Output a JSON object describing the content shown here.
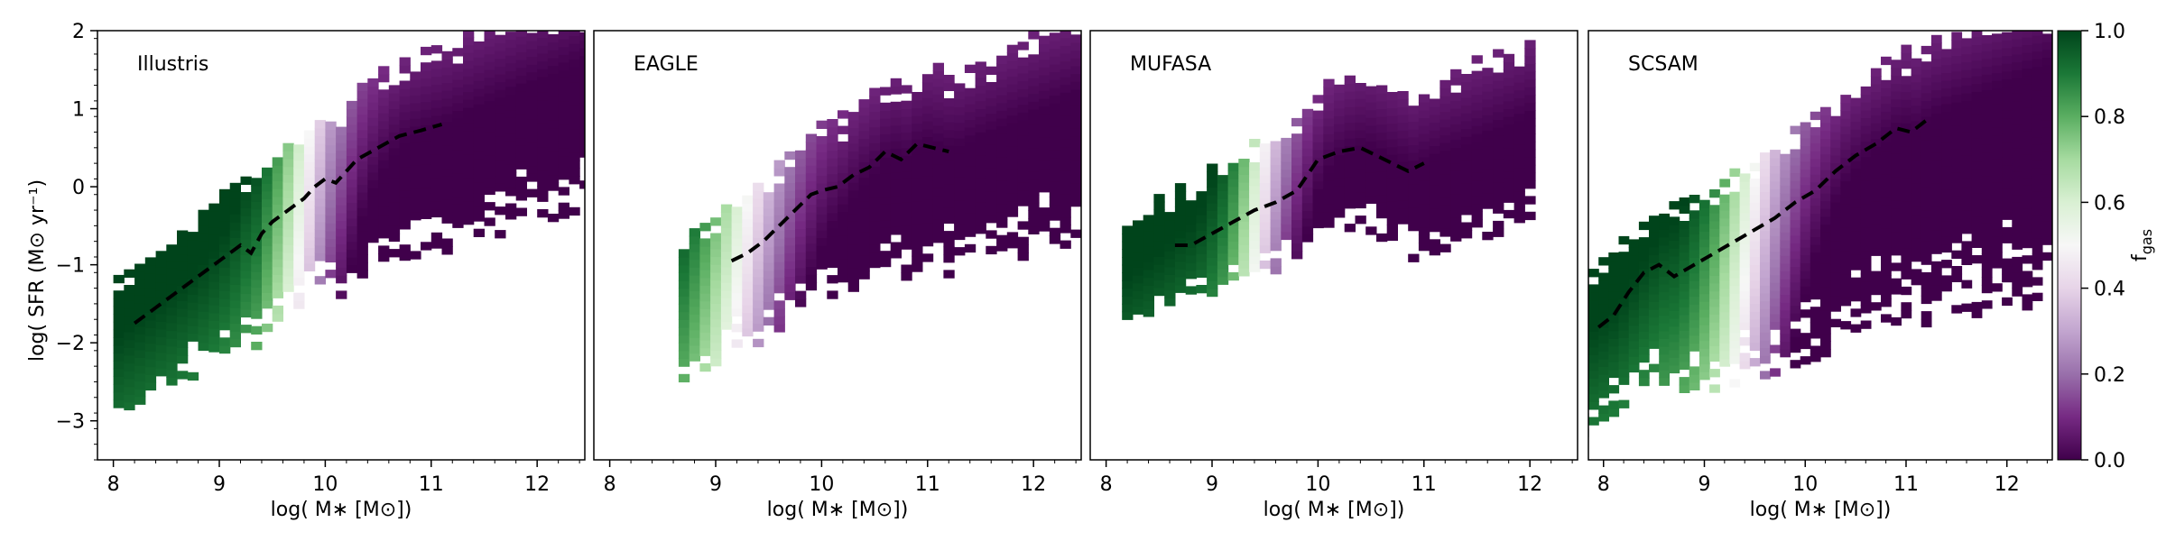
{
  "colors": {
    "colormap": "PRGn",
    "colormap_stops": [
      "#40004b",
      "#762a83",
      "#9970ab",
      "#c2a5cf",
      "#e7d4e8",
      "#f7f7f7",
      "#d9f0d3",
      "#a6dba0",
      "#5aae61",
      "#1b7837",
      "#00441b"
    ],
    "median_line": "#000000"
  },
  "chart_data": [
    {
      "type": "heatmap",
      "title": "Illustris",
      "xlabel": "log( M∗ [M⊙])",
      "ylabel": "log( SFR (M⊙ yr⁻¹)",
      "xlim": [
        7.85,
        12.45
      ],
      "ylim": [
        -3.5,
        2.0
      ],
      "xticks": [
        8,
        9,
        10,
        11,
        12
      ],
      "yticks": [
        -3,
        -2,
        -1,
        0,
        1,
        2
      ],
      "median_x": [
        8.2,
        8.4,
        8.6,
        8.8,
        9.0,
        9.2,
        9.3,
        9.4,
        9.5,
        9.6,
        9.7,
        9.8,
        9.9,
        10.0,
        10.1,
        10.2,
        10.3,
        10.5,
        10.7,
        10.9,
        11.1
      ],
      "median_y": [
        -1.75,
        -1.55,
        -1.35,
        -1.15,
        -0.95,
        -0.75,
        -0.85,
        -0.6,
        -0.45,
        -0.35,
        -0.25,
        -0.15,
        0.0,
        0.1,
        0.05,
        0.2,
        0.35,
        0.5,
        0.65,
        0.72,
        0.8
      ],
      "gas_transition_mass": 9.75,
      "gas_transition_width": 0.45
    },
    {
      "type": "heatmap",
      "title": "EAGLE",
      "xlabel": "log( M∗ [M⊙])",
      "ylabel": "",
      "xlim": [
        7.85,
        12.45
      ],
      "ylim": [
        -3.5,
        2.0
      ],
      "xticks": [
        8,
        9,
        10,
        11,
        12
      ],
      "yticks": [],
      "median_x": [
        9.15,
        9.3,
        9.45,
        9.6,
        9.75,
        9.9,
        10.0,
        10.15,
        10.3,
        10.45,
        10.6,
        10.75,
        10.9,
        11.05,
        11.2
      ],
      "median_y": [
        -0.95,
        -0.85,
        -0.7,
        -0.5,
        -0.3,
        -0.1,
        -0.05,
        0.0,
        0.15,
        0.25,
        0.45,
        0.35,
        0.55,
        0.5,
        0.45
      ],
      "gas_transition_mass": 9.2,
      "gas_transition_width": 0.6
    },
    {
      "type": "heatmap",
      "title": "MUFASA",
      "xlabel": "log( M∗ [M⊙])",
      "ylabel": "",
      "xlim": [
        7.85,
        12.45
      ],
      "ylim": [
        -3.5,
        2.0
      ],
      "xticks": [
        8,
        9,
        10,
        11,
        12
      ],
      "yticks": [],
      "median_x": [
        8.65,
        8.8,
        9.0,
        9.2,
        9.4,
        9.6,
        9.8,
        10.0,
        10.2,
        10.4,
        10.55,
        10.7,
        10.85,
        11.0
      ],
      "median_y": [
        -0.75,
        -0.75,
        -0.6,
        -0.45,
        -0.3,
        -0.2,
        -0.05,
        0.35,
        0.45,
        0.5,
        0.4,
        0.3,
        0.2,
        0.3
      ],
      "gas_transition_mass": 9.4,
      "gas_transition_width": 0.35
    },
    {
      "type": "heatmap",
      "title": "SCSAM",
      "xlabel": "log( M∗ [M⊙])",
      "ylabel": "",
      "xlim": [
        7.85,
        12.45
      ],
      "ylim": [
        -3.5,
        2.0
      ],
      "xticks": [
        8,
        9,
        10,
        11,
        12
      ],
      "yticks": [],
      "median_x": [
        7.95,
        8.1,
        8.25,
        8.4,
        8.55,
        8.7,
        8.9,
        9.1,
        9.3,
        9.5,
        9.7,
        9.9,
        10.1,
        10.3,
        10.5,
        10.7,
        10.9,
        11.05,
        11.2
      ],
      "median_y": [
        -1.8,
        -1.65,
        -1.35,
        -1.1,
        -1.0,
        -1.15,
        -1.0,
        -0.85,
        -0.7,
        -0.55,
        -0.4,
        -0.2,
        -0.05,
        0.2,
        0.4,
        0.55,
        0.75,
        0.7,
        0.85
      ],
      "gas_transition_mass": 9.4,
      "gas_transition_width": 0.55
    }
  ],
  "colorbar": {
    "label": "f",
    "label_sub": "gas",
    "min": 0.0,
    "max": 1.0,
    "ticks": [
      "0.0",
      "0.2",
      "0.4",
      "0.6",
      "0.8",
      "1.0"
    ]
  }
}
